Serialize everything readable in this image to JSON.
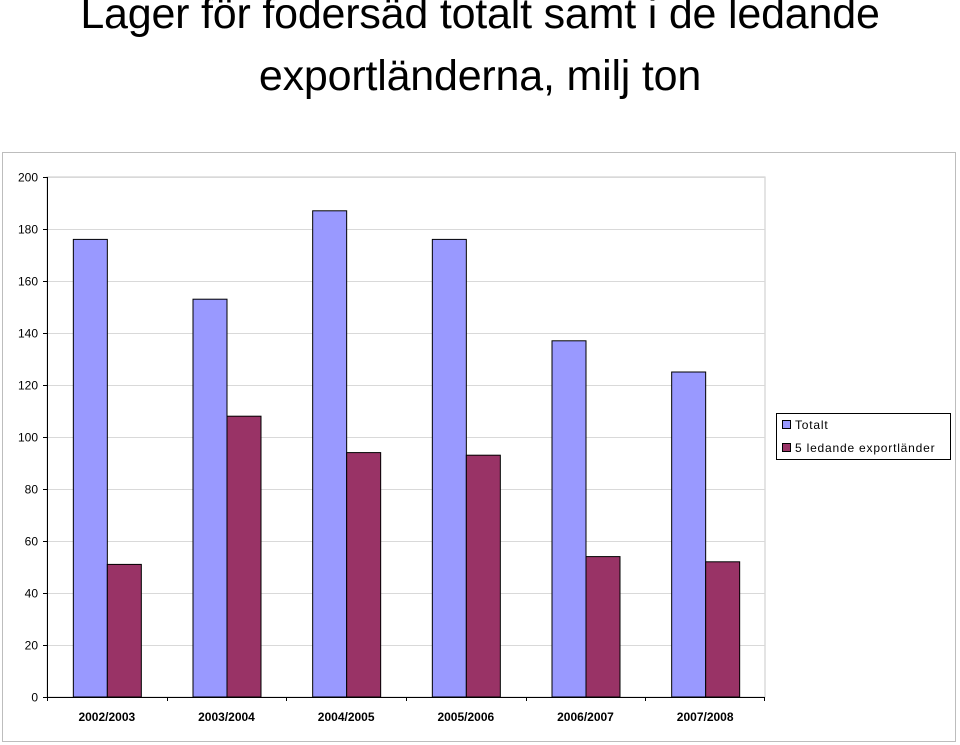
{
  "title_line1": "Lager för fodersäd totalt samt i de ledande",
  "title_line2": "exportländerna, milj ton",
  "chart_data": {
    "type": "bar",
    "title": "Lager för fodersäd totalt samt i de ledande exportländerna, milj ton",
    "categories": [
      "2002/2003",
      "2003/2004",
      "2004/2005",
      "2005/2006",
      "2006/2007",
      "2007/2008"
    ],
    "series": [
      {
        "name": "Totalt",
        "values": [
          176,
          153,
          187,
          176,
          137,
          125
        ],
        "color": "#9999ff"
      },
      {
        "name": "5 ledande exportländer",
        "values": [
          51,
          108,
          94,
          93,
          54,
          52
        ],
        "color": "#993366"
      }
    ],
    "ylim": [
      0,
      200
    ],
    "yticks": [
      0,
      20,
      40,
      60,
      80,
      100,
      120,
      140,
      160,
      180,
      200
    ],
    "grid": true,
    "legend": "right"
  }
}
